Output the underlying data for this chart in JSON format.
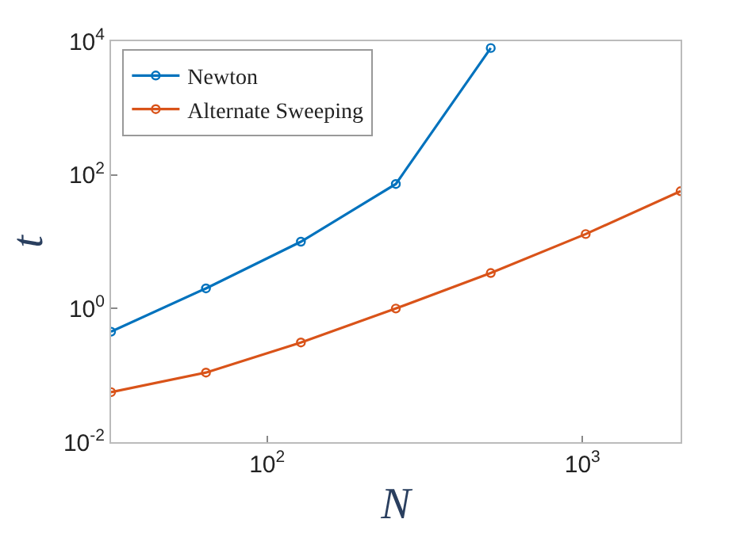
{
  "chart_data": {
    "type": "line",
    "xlabel": "N",
    "ylabel": "t",
    "x": [
      32,
      64,
      128,
      256,
      512,
      1024,
      2048
    ],
    "series": [
      {
        "name": "Newton",
        "color": "#0072bd",
        "values": [
          0.45,
          2.0,
          10,
          73,
          7900,
          null,
          null
        ]
      },
      {
        "name": "Alternate Sweeping",
        "color": "#d95319",
        "values": [
          0.056,
          0.11,
          0.31,
          1.0,
          3.4,
          13,
          57
        ]
      }
    ],
    "log": "xy",
    "xlim": [
      32,
      2048
    ],
    "ylim": [
      0.01,
      10000
    ],
    "xticks": [
      {
        "value": 100,
        "label": "10$^{2}$"
      },
      {
        "value": 1000,
        "label": "10$^{3}$"
      }
    ],
    "yticks": [
      {
        "value": 0.01,
        "label": "10$^{-2}$"
      },
      {
        "value": 1,
        "label": "10$^{0}$"
      },
      {
        "value": 100,
        "label": "10$^{2}$"
      },
      {
        "value": 10000,
        "label": "10$^{4}$"
      }
    ],
    "grid": false,
    "legend": "top left",
    "marker": "circle",
    "line_style": "solid"
  }
}
